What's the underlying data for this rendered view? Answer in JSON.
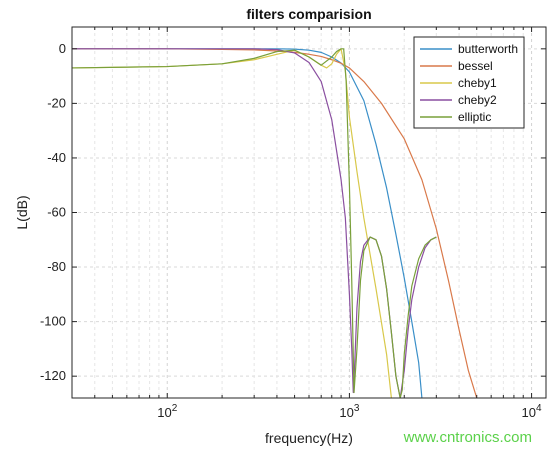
{
  "watermark": "www.cntronics.com",
  "chart_data": {
    "type": "line",
    "title": "filters comparision",
    "xlabel": "frequency(Hz)",
    "ylabel": "L(dB)",
    "xscale": "log",
    "xlim": [
      30,
      12000
    ],
    "ylim": [
      -128,
      8
    ],
    "xticks": [
      {
        "value": 100,
        "base": "10",
        "exp": "2"
      },
      {
        "value": 1000,
        "base": "10",
        "exp": "3"
      },
      {
        "value": 10000,
        "base": "10",
        "exp": "4"
      }
    ],
    "yticks": [
      0,
      -20,
      -40,
      -60,
      -80,
      -100,
      -120
    ],
    "grid": true,
    "legend_position": "top-right",
    "series": [
      {
        "name": "butterworth",
        "color": "#3a8fc8",
        "x": [
          30,
          100,
          200,
          300,
          400,
          500,
          600,
          700,
          800,
          900,
          1000,
          1200,
          1400,
          1600,
          1800,
          2000,
          2200,
          2400,
          2500
        ],
        "y": [
          0,
          0,
          0,
          0,
          0,
          -0.1,
          -0.5,
          -1.3,
          -3,
          -5.2,
          -8.5,
          -19,
          -35,
          -51,
          -68,
          -84,
          -100,
          -115,
          -128
        ]
      },
      {
        "name": "bessel",
        "color": "#d9794a",
        "x": [
          30,
          100,
          200,
          300,
          400,
          500,
          600,
          700,
          800,
          900,
          1000,
          1200,
          1500,
          2000,
          2500,
          3000,
          3500,
          4000,
          4500,
          5000
        ],
        "y": [
          0,
          0,
          -0.2,
          -0.4,
          -0.8,
          -1.3,
          -2,
          -2.8,
          -4,
          -5.3,
          -7,
          -12,
          -20,
          -33,
          -48,
          -66,
          -85,
          -103,
          -118,
          -128
        ]
      },
      {
        "name": "cheby1",
        "color": "#d8c84a",
        "x": [
          30,
          100,
          200,
          300,
          400,
          500,
          600,
          700,
          750,
          800,
          850,
          900,
          950,
          1000,
          1100,
          1200,
          1400,
          1600,
          1700
        ],
        "y": [
          -7,
          -6.5,
          -5.5,
          -4,
          -2,
          -0.5,
          -3,
          -6,
          -7,
          -5.5,
          -2,
          0,
          -8,
          -25,
          -45,
          -62,
          -88,
          -112,
          -128
        ]
      },
      {
        "name": "cheby2",
        "color": "#8a4fa0",
        "x": [
          30,
          100,
          200,
          300,
          400,
          500,
          600,
          700,
          800,
          900,
          950,
          1000,
          1030,
          1050,
          1070,
          1100,
          1150,
          1200,
          1300,
          1400,
          1500,
          1600,
          1700,
          1800,
          1900,
          2000,
          2100,
          2200,
          2400,
          2600,
          2800,
          3000
        ],
        "y": [
          0,
          0,
          0,
          0,
          -0.3,
          -1.5,
          -5,
          -12,
          -26,
          -48,
          -62,
          -90,
          -110,
          -126,
          -115,
          -95,
          -78,
          -72,
          -69,
          -70,
          -76,
          -88,
          -104,
          -120,
          -128,
          -118,
          -103,
          -92,
          -80,
          -73,
          -70,
          -69
        ]
      },
      {
        "name": "elliptic",
        "color": "#79a03a",
        "x": [
          30,
          100,
          200,
          300,
          400,
          500,
          600,
          700,
          800,
          850,
          900,
          930,
          960,
          1000,
          1030,
          1060,
          1100,
          1150,
          1200,
          1300,
          1400,
          1500,
          1600,
          1700,
          1800,
          1900,
          1950,
          2000,
          2100,
          2200,
          2400,
          2600,
          2800,
          3000
        ],
        "y": [
          -7,
          -6.5,
          -5.5,
          -3.5,
          -1,
          -0.5,
          -3,
          -6,
          -3,
          -1,
          0,
          0,
          -12,
          -50,
          -85,
          -126,
          -110,
          -85,
          -74,
          -69,
          -70,
          -76,
          -88,
          -104,
          -120,
          -128,
          -125,
          -112,
          -98,
          -87,
          -77,
          -72,
          -70,
          -69
        ]
      }
    ]
  }
}
